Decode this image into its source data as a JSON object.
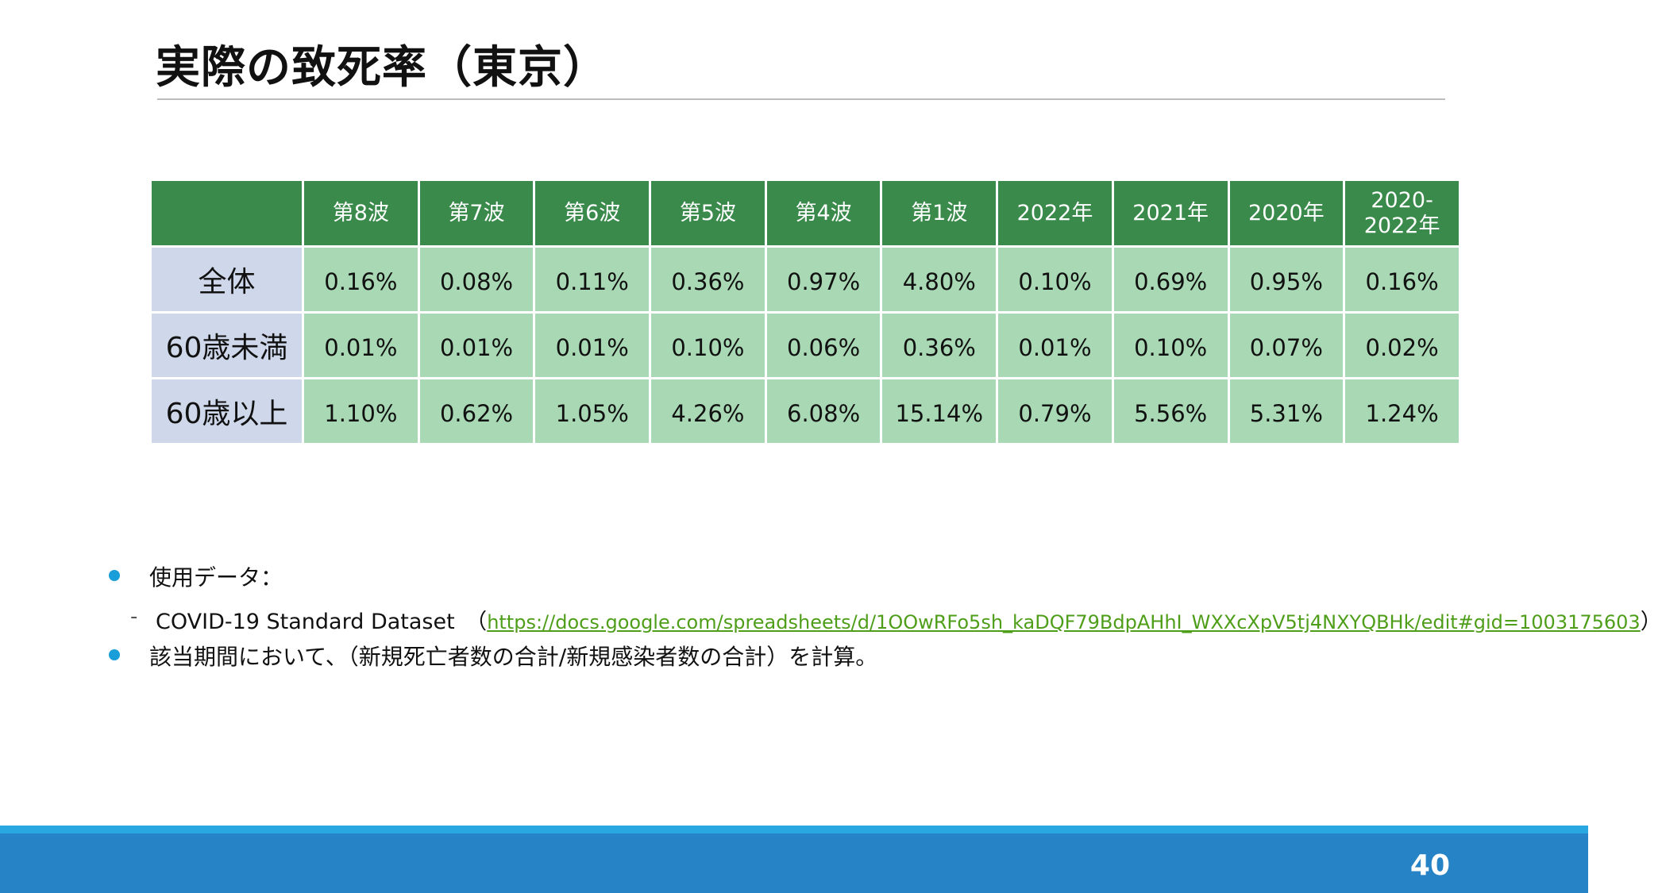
{
  "slide": {
    "title": "実際の致死率（東京）",
    "page_number": "40"
  },
  "table": {
    "columns": [
      "",
      "第8波",
      "第7波",
      "第6波",
      "第5波",
      "第4波",
      "第1波",
      "2022年",
      "2021年",
      "2020年",
      "2020-\n2022年"
    ],
    "rows": [
      {
        "label": "全体",
        "values": [
          "0.16%",
          "0.08%",
          "0.11%",
          "0.36%",
          "0.97%",
          "4.80%",
          "0.10%",
          "0.69%",
          "0.95%",
          "0.16%"
        ]
      },
      {
        "label": "60歳未満",
        "values": [
          "0.01%",
          "0.01%",
          "0.01%",
          "0.10%",
          "0.06%",
          "0.36%",
          "0.01%",
          "0.10%",
          "0.07%",
          "0.02%"
        ]
      },
      {
        "label": "60歳以上",
        "values": [
          "1.10%",
          "0.62%",
          "1.05%",
          "4.26%",
          "6.08%",
          "15.14%",
          "0.79%",
          "5.56%",
          "5.31%",
          "1.24%"
        ]
      }
    ]
  },
  "notes": {
    "bullet1": "使用データ：",
    "sub_dash": "-",
    "sub_label": "COVID-19 Standard Dataset　（",
    "sub_link": "https://docs.google.com/spreadsheets/d/1OOwRFo5sh_kaDQF79BdpAHhI_WXXcXpV5tj4NXYQBHk/edit#gid=1003175603",
    "sub_close": "）",
    "bullet2": "該当期間において、（新規死亡者数の合計/新規感染者数の合計）を計算。"
  },
  "colors": {
    "header_green": "#3a8a4b",
    "cell_green": "#a8d8b4",
    "rowhead_blue": "#cfd8ea",
    "footer_blue": "#2683c6",
    "footer_line": "#29a7e0",
    "bullet_blue": "#1a9ed9",
    "link_green": "#4f9e1a"
  }
}
